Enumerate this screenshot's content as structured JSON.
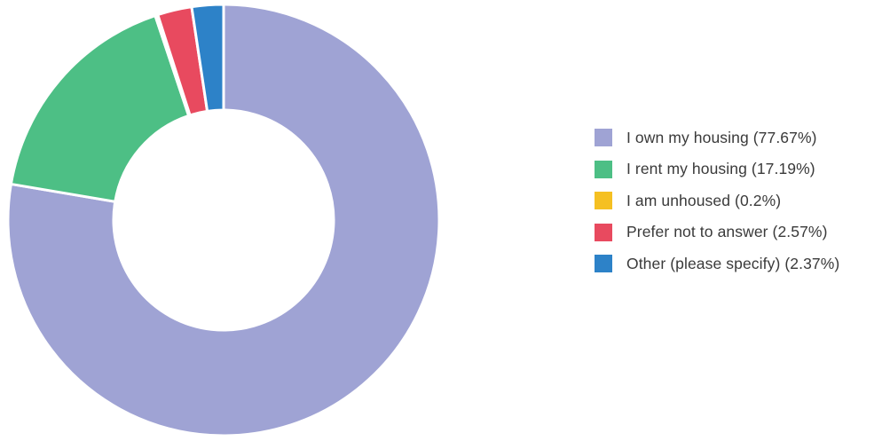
{
  "chart_data": {
    "type": "pie",
    "donut": true,
    "title": "",
    "legend_position": "right",
    "series": [
      {
        "label": "I own my housing (77.67%)",
        "name": "I own my housing",
        "value": 77.67,
        "color": "#9fa3d4"
      },
      {
        "label": "I rent my housing (17.19%)",
        "name": "I rent my housing",
        "value": 17.19,
        "color": "#4dbf85"
      },
      {
        "label": "I am unhoused (0.2%)",
        "name": "I am unhoused",
        "value": 0.2,
        "color": "#f5c022"
      },
      {
        "label": "Prefer not to answer (2.57%)",
        "name": "Prefer not to answer",
        "value": 2.57,
        "color": "#e84a5f"
      },
      {
        "label": "Other (please specify) (2.37%)",
        "name": "Other (please specify)",
        "value": 2.37,
        "color": "#2d82c8"
      }
    ]
  }
}
